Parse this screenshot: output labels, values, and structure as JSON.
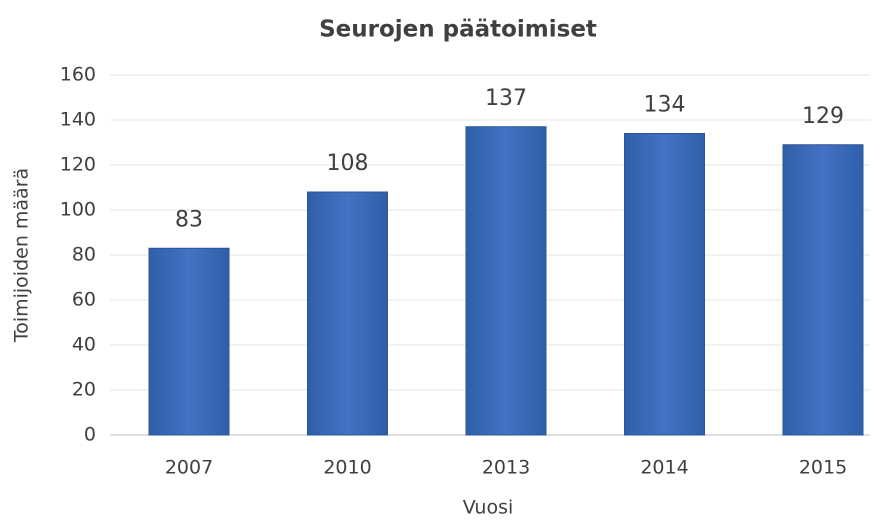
{
  "chart_data": {
    "type": "bar",
    "title": "Seurojen päätoimiset",
    "x_label": "Vuosi",
    "y_label": "Toimijoiden määrä",
    "categories": [
      "2007",
      "2010",
      "2013",
      "2014",
      "2015"
    ],
    "values": [
      83,
      108,
      137,
      134,
      129
    ],
    "color": "#4472c4",
    "ylim": [
      0,
      160
    ],
    "yticks": [
      0,
      20,
      40,
      60,
      80,
      100,
      120,
      140,
      160
    ],
    "grid": true
  }
}
